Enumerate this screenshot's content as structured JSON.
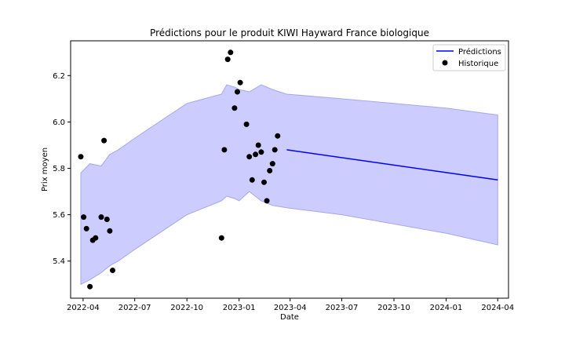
{
  "chart_data": {
    "type": "line",
    "title": "Prédictions pour le produit KIWI Hayward France biologique",
    "xlabel": "Date",
    "ylabel": "Prix moyen",
    "xlim": [
      "2022-03-10",
      "2024-04-20"
    ],
    "ylim": [
      5.24,
      6.35
    ],
    "x_ticks": [
      "2022-04",
      "2022-07",
      "2022-10",
      "2023-01",
      "2023-04",
      "2023-07",
      "2023-10",
      "2024-01",
      "2024-04"
    ],
    "y_ticks": [
      5.4,
      5.6,
      5.8,
      6.0,
      6.2
    ],
    "legend": {
      "position": "top-right",
      "entries": [
        "Prédictions",
        "Historique"
      ]
    },
    "colors": {
      "prediction_line": "#0000ff",
      "interval_fill": "#ccccff",
      "interval_edge": "#a6a6ee",
      "history_marker": "#000000"
    },
    "series": [
      {
        "name": "Prédictions",
        "kind": "line",
        "x": [
          "2023-03-26",
          "2024-04-01"
        ],
        "y": [
          5.88,
          5.75
        ]
      },
      {
        "name": "Historique",
        "kind": "scatter",
        "x": [
          "2022-03-28",
          "2022-04-02",
          "2022-04-07",
          "2022-04-13",
          "2022-04-18",
          "2022-04-23",
          "2022-05-03",
          "2022-05-08",
          "2022-05-13",
          "2022-05-18",
          "2022-05-23",
          "2022-05-28",
          "2022-12-01",
          "2022-12-06",
          "2022-12-12",
          "2022-12-17",
          "2022-12-24",
          "2022-12-29",
          "2023-01-03",
          "2023-01-14",
          "2023-01-19",
          "2023-01-24",
          "2023-01-30",
          "2023-02-04",
          "2023-02-09",
          "2023-02-14",
          "2023-02-19",
          "2023-02-24",
          "2023-03-01",
          "2023-03-05",
          "2023-03-10",
          "2023-03-15",
          "2023-03-20",
          "2023-03-25",
          "2023-03-31"
        ],
        "y": [
          5.85,
          5.59,
          5.54,
          5.29,
          5.49,
          5.5,
          5.59,
          5.92,
          5.58,
          5.53,
          5.36,
          null,
          5.5,
          5.88,
          6.27,
          6.3,
          6.06,
          6.13,
          6.17,
          5.99,
          5.85,
          5.75,
          5.86,
          5.9,
          5.87,
          5.74,
          5.66,
          5.79,
          5.82,
          5.88,
          5.94,
          null,
          null,
          null,
          null
        ]
      }
    ],
    "interval": {
      "x": [
        "2022-03-28",
        "2022-04-13",
        "2022-05-03",
        "2022-05-18",
        "2022-06-02",
        "2022-07-01",
        "2022-10-01",
        "2022-12-01",
        "2022-12-10",
        "2022-12-24",
        "2023-01-01",
        "2023-01-19",
        "2023-02-09",
        "2023-03-01",
        "2023-03-26",
        "2023-07-01",
        "2023-10-01",
        "2024-01-01",
        "2024-04-01"
      ],
      "upper": [
        5.78,
        5.82,
        5.81,
        5.86,
        5.88,
        5.93,
        6.08,
        6.12,
        6.16,
        6.15,
        6.14,
        6.13,
        6.16,
        6.14,
        6.12,
        6.1,
        6.08,
        6.06,
        6.03
      ],
      "lower": [
        5.3,
        5.32,
        5.35,
        5.38,
        5.4,
        5.45,
        5.6,
        5.66,
        5.68,
        5.67,
        5.66,
        5.7,
        5.66,
        5.64,
        5.63,
        5.6,
        5.56,
        5.52,
        5.47
      ]
    }
  }
}
